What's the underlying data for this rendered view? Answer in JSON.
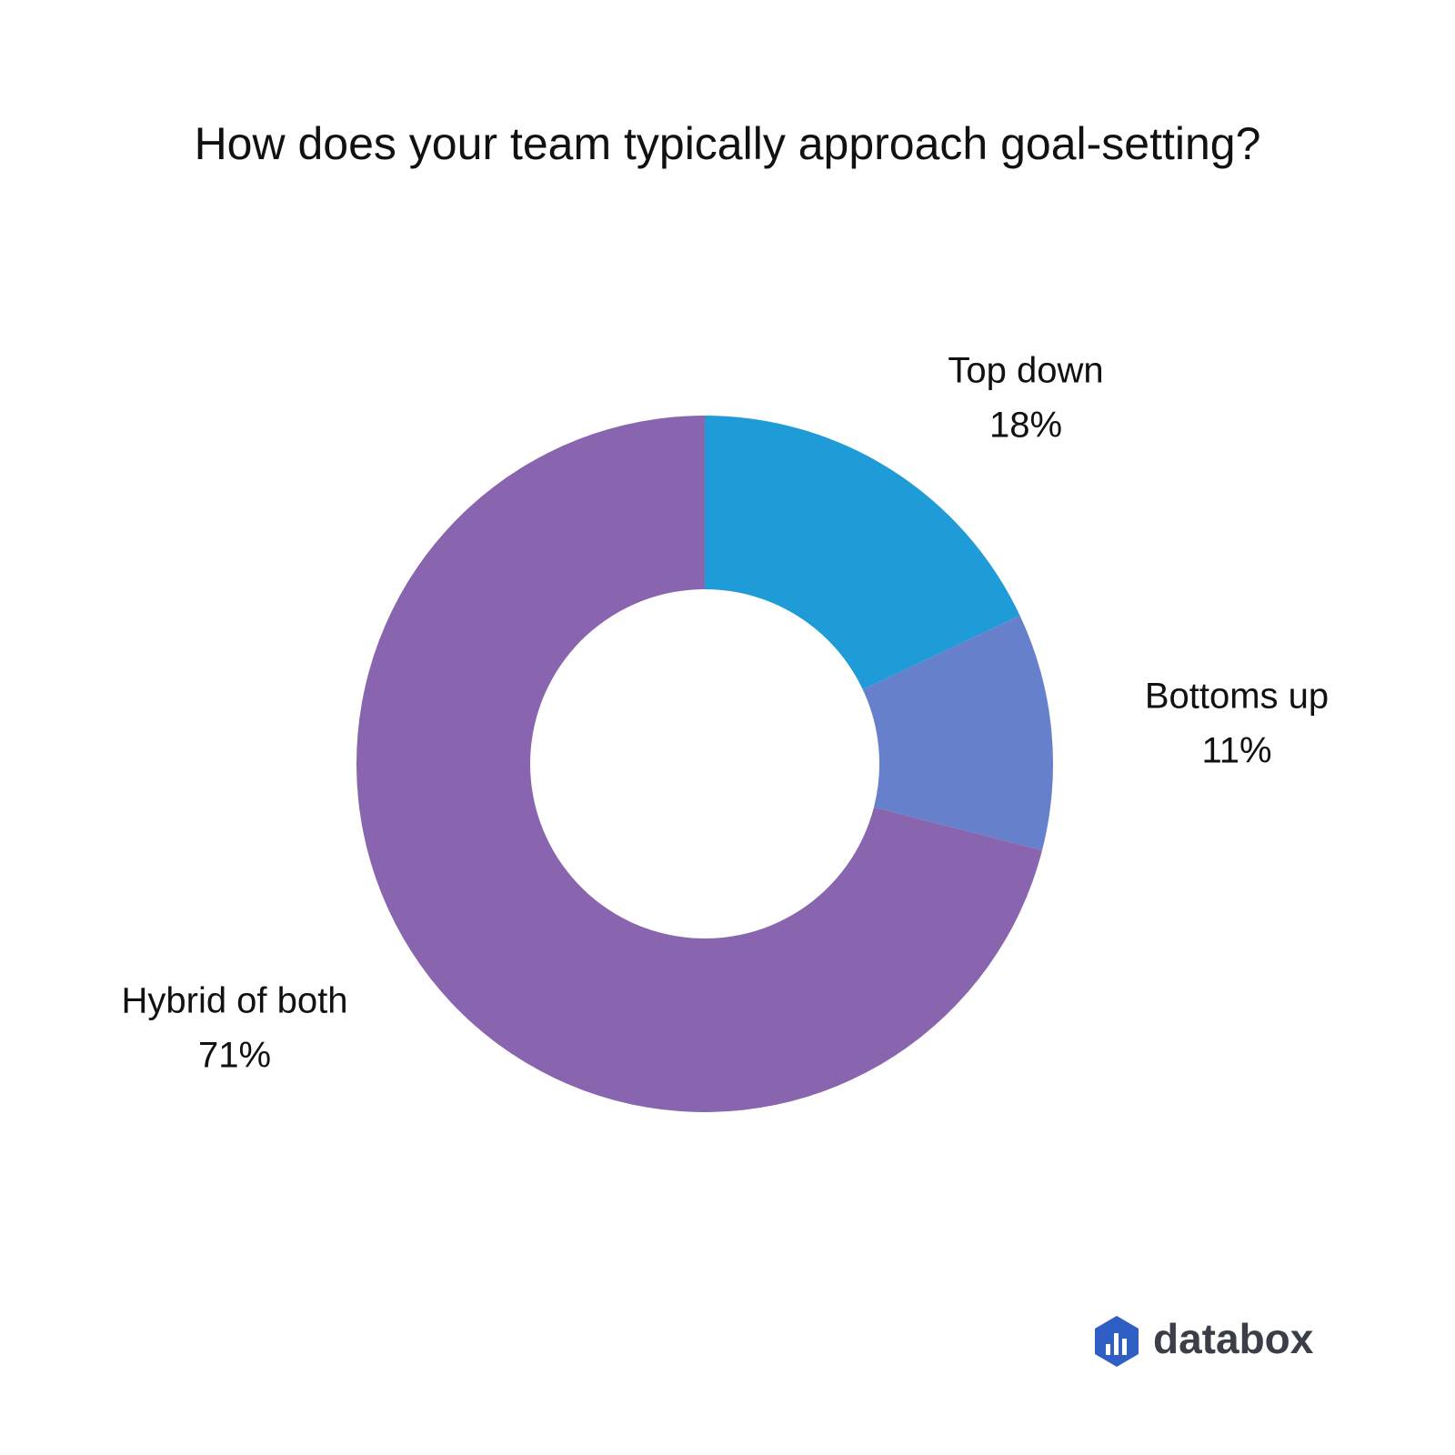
{
  "chart_data": {
    "type": "donut",
    "title": "How does your team typically approach goal-setting?",
    "categories": [
      "Top down",
      "Bottoms up",
      "Hybrid of both"
    ],
    "values": [
      18,
      11,
      71
    ],
    "value_labels": [
      "18%",
      "11%",
      "71%"
    ],
    "colors": [
      "#1f9bd7",
      "#6680cc",
      "#8865ae"
    ]
  },
  "brand": "databox"
}
